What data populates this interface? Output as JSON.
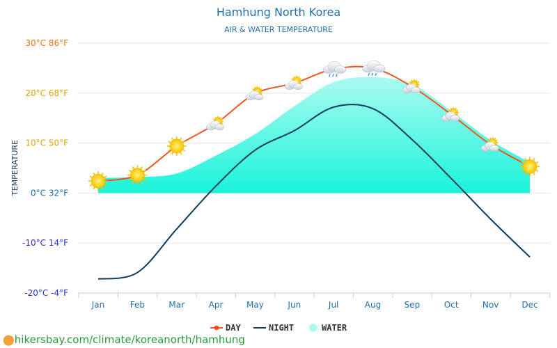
{
  "source": {
    "pin_icon": "map-pin-icon",
    "text": "hikersbay.com/climate/koreanorth/hamhung"
  },
  "legend": {
    "day": "DAY",
    "night": "NIGHT",
    "water": "WATER"
  },
  "colors": {
    "day": "#f0561c",
    "night": "#0e3a5c",
    "water_top": "#aafaf0",
    "water_bottom": "#19f4da",
    "grid": "#e6e6e6",
    "tick_warm": "#e8740f",
    "tick_mild": "#e0a500",
    "tick_zero": "#1f6fa8",
    "tick_cold": "#2b2bc8"
  },
  "chart_data": {
    "type": "line",
    "title": "Hamhung North Korea",
    "subtitle": "AIR & WATER TEMPERATURE",
    "ylabel": "TEMPERATURE",
    "categories": [
      "Jan",
      "Feb",
      "Mar",
      "Apr",
      "May",
      "Jun",
      "Jul",
      "Aug",
      "Sep",
      "Oct",
      "Nov",
      "Dec"
    ],
    "ylim": [
      -20,
      30
    ],
    "yticks": [
      {
        "value": 30,
        "label": "30°C 86°F",
        "tone": "warm"
      },
      {
        "value": 20,
        "label": "20°C 68°F",
        "tone": "mild"
      },
      {
        "value": 10,
        "label": "10°C 50°F",
        "tone": "mild"
      },
      {
        "value": 0,
        "label": "0°C 32°F",
        "tone": "zero"
      },
      {
        "value": -10,
        "label": "-10°C 14°F",
        "tone": "cold"
      },
      {
        "value": -20,
        "label": "-20°C -4°F",
        "tone": "cold"
      }
    ],
    "grid": true,
    "legend_position": "bottom-center",
    "series": [
      {
        "name": "DAY",
        "values": [
          2.4,
          3.6,
          9.4,
          13.9,
          19.9,
          22.0,
          24.8,
          25.0,
          21.3,
          15.7,
          9.7,
          5.3
        ]
      },
      {
        "name": "NIGHT",
        "values": [
          -17.2,
          -15.9,
          -7.2,
          1.4,
          8.6,
          12.5,
          17.2,
          16.9,
          10.7,
          2.9,
          -5.2,
          -12.8
        ]
      },
      {
        "name": "WATER",
        "values": [
          3.0,
          3.2,
          3.9,
          7.5,
          11.8,
          17.4,
          22.2,
          23.2,
          21.8,
          16.4,
          10.6,
          6.1
        ]
      }
    ],
    "weather_icons": [
      "sun-icon",
      "sun-icon",
      "sun-icon",
      "sun-cloud-icon",
      "sun-cloud-icon",
      "sun-cloud-icon",
      "rain-cloud-icon",
      "rain-cloud-icon",
      "sun-cloud-icon",
      "sun-cloud-icon",
      "sun-cloud-icon",
      "sun-icon"
    ]
  }
}
